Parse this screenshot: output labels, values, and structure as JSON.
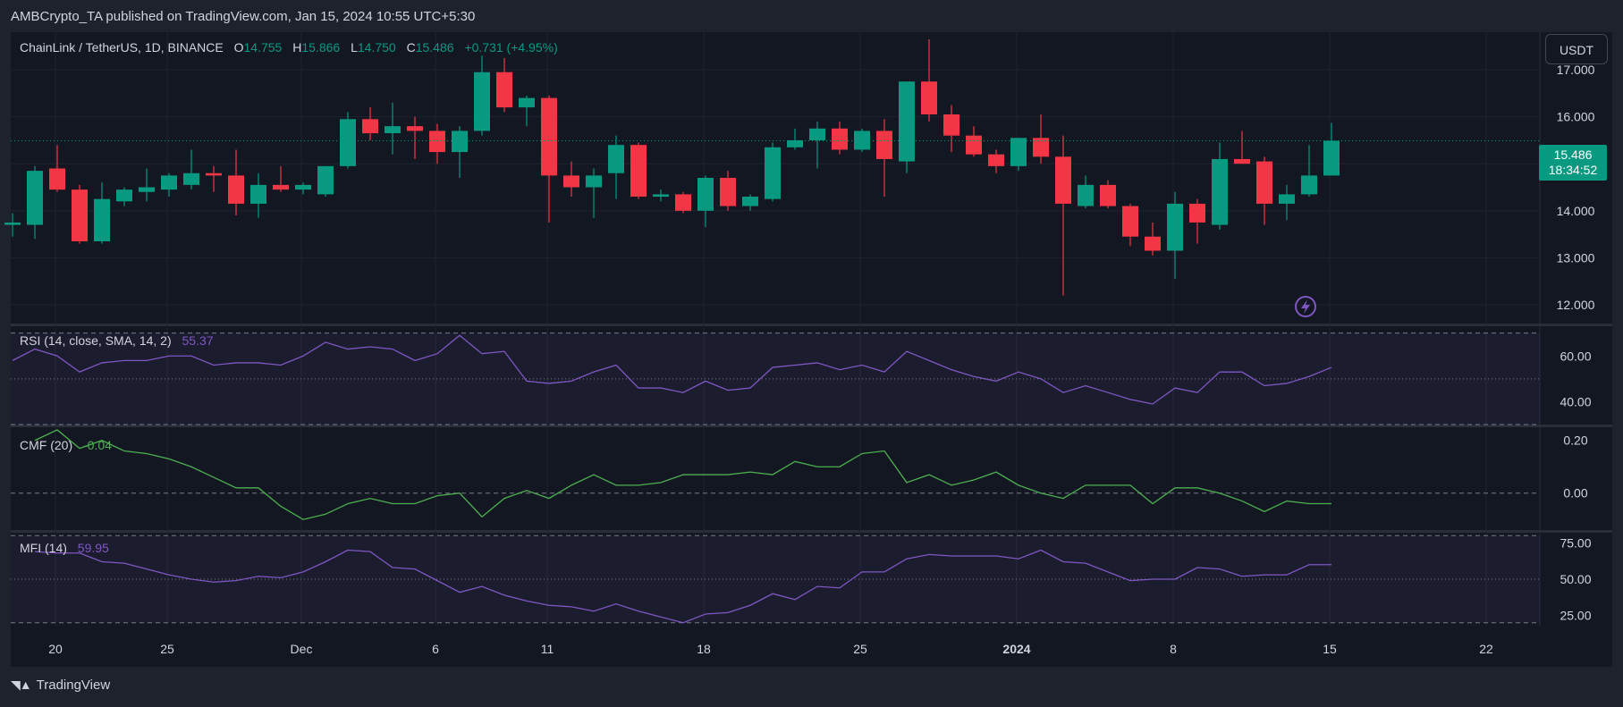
{
  "header": {
    "caption": "AMBCrypto_TA published on TradingView.com, Jan 15, 2024 10:55 UTC+5:30"
  },
  "symbol": {
    "name": "ChainLink / TetherUS, 1D, BINANCE",
    "o_label": "O",
    "o_value": "14.755",
    "h_label": "H",
    "h_value": "15.866",
    "l_label": "L",
    "l_value": "14.750",
    "c_label": "C",
    "c_value": "15.486",
    "change": "+0.731 (+4.95%)"
  },
  "currency_button": "USDT",
  "last_price": {
    "price": "15.486",
    "countdown": "18:34:52"
  },
  "colors": {
    "up": "#089981",
    "down": "#f23645",
    "rsi": "#7e57c2",
    "cmf": "#4caf50",
    "mfi": "#7e57c2",
    "bg": "#131722"
  },
  "footer": {
    "brand": "TradingView",
    "logo_icon": "tradingview-logo-icon"
  },
  "chart_data": [
    {
      "type": "candlestick",
      "pane": "price",
      "x_tick_labels": [
        {
          "label": "20",
          "index": 1
        },
        {
          "label": "25",
          "index": 6
        },
        {
          "label": "Dec",
          "index": 12
        },
        {
          "label": "6",
          "index": 18
        },
        {
          "label": "11",
          "index": 23
        },
        {
          "label": "18",
          "index": 30
        },
        {
          "label": "25",
          "index": 37
        },
        {
          "label": "2024",
          "index": 44
        },
        {
          "label": "8",
          "index": 51
        },
        {
          "label": "15",
          "index": 58
        },
        {
          "label": "22",
          "index": 65
        }
      ],
      "y_ticks": [
        "17.000",
        "16.000",
        "15.000",
        "14.000",
        "13.000",
        "12.000"
      ],
      "ylim": [
        11.6,
        17.8
      ],
      "candles": [
        {
          "o": 13.7,
          "h": 13.95,
          "l": 13.45,
          "c": 13.75
        },
        {
          "o": 13.7,
          "h": 14.95,
          "l": 13.4,
          "c": 14.85
        },
        {
          "o": 14.9,
          "h": 15.4,
          "l": 14.4,
          "c": 14.45
        },
        {
          "o": 14.45,
          "h": 14.55,
          "l": 13.3,
          "c": 13.35
        },
        {
          "o": 13.35,
          "h": 14.6,
          "l": 13.3,
          "c": 14.25
        },
        {
          "o": 14.2,
          "h": 14.5,
          "l": 14.1,
          "c": 14.45
        },
        {
          "o": 14.4,
          "h": 14.9,
          "l": 14.2,
          "c": 14.5
        },
        {
          "o": 14.45,
          "h": 14.8,
          "l": 14.3,
          "c": 14.75
        },
        {
          "o": 14.55,
          "h": 15.3,
          "l": 14.45,
          "c": 14.8
        },
        {
          "o": 14.8,
          "h": 14.95,
          "l": 14.4,
          "c": 14.75
        },
        {
          "o": 14.75,
          "h": 15.3,
          "l": 13.9,
          "c": 14.15
        },
        {
          "o": 14.15,
          "h": 14.8,
          "l": 13.85,
          "c": 14.55
        },
        {
          "o": 14.55,
          "h": 14.95,
          "l": 14.4,
          "c": 14.45
        },
        {
          "o": 14.45,
          "h": 14.6,
          "l": 14.35,
          "c": 14.55
        },
        {
          "o": 14.35,
          "h": 14.95,
          "l": 14.3,
          "c": 14.95
        },
        {
          "o": 14.95,
          "h": 16.1,
          "l": 14.9,
          "c": 15.95
        },
        {
          "o": 15.95,
          "h": 16.2,
          "l": 15.5,
          "c": 15.65
        },
        {
          "o": 15.65,
          "h": 16.3,
          "l": 15.2,
          "c": 15.8
        },
        {
          "o": 15.8,
          "h": 16.0,
          "l": 15.1,
          "c": 15.7
        },
        {
          "o": 15.7,
          "h": 15.85,
          "l": 15.0,
          "c": 15.25
        },
        {
          "o": 15.25,
          "h": 15.8,
          "l": 14.7,
          "c": 15.7
        },
        {
          "o": 15.7,
          "h": 17.3,
          "l": 15.6,
          "c": 16.95
        },
        {
          "o": 16.95,
          "h": 17.25,
          "l": 16.1,
          "c": 16.2
        },
        {
          "o": 16.2,
          "h": 16.45,
          "l": 15.8,
          "c": 16.4
        },
        {
          "o": 16.4,
          "h": 16.45,
          "l": 13.75,
          "c": 14.75
        },
        {
          "o": 14.75,
          "h": 15.05,
          "l": 14.3,
          "c": 14.5
        },
        {
          "o": 14.5,
          "h": 14.9,
          "l": 13.85,
          "c": 14.75
        },
        {
          "o": 14.8,
          "h": 15.6,
          "l": 14.25,
          "c": 15.4
        },
        {
          "o": 15.4,
          "h": 15.45,
          "l": 14.25,
          "c": 14.3
        },
        {
          "o": 14.3,
          "h": 14.45,
          "l": 14.2,
          "c": 14.35
        },
        {
          "o": 14.35,
          "h": 14.4,
          "l": 13.95,
          "c": 14.0
        },
        {
          "o": 14.0,
          "h": 14.75,
          "l": 13.65,
          "c": 14.7
        },
        {
          "o": 14.7,
          "h": 14.85,
          "l": 14.0,
          "c": 14.1
        },
        {
          "o": 14.1,
          "h": 14.35,
          "l": 14.0,
          "c": 14.3
        },
        {
          "o": 14.25,
          "h": 15.45,
          "l": 14.2,
          "c": 15.35
        },
        {
          "o": 15.35,
          "h": 15.75,
          "l": 15.3,
          "c": 15.5
        },
        {
          "o": 15.5,
          "h": 15.9,
          "l": 14.9,
          "c": 15.75
        },
        {
          "o": 15.75,
          "h": 15.9,
          "l": 15.2,
          "c": 15.3
        },
        {
          "o": 15.3,
          "h": 15.75,
          "l": 15.25,
          "c": 15.7
        },
        {
          "o": 15.7,
          "h": 15.95,
          "l": 14.3,
          "c": 15.1
        },
        {
          "o": 15.05,
          "h": 16.75,
          "l": 14.8,
          "c": 16.75
        },
        {
          "o": 16.75,
          "h": 17.65,
          "l": 15.9,
          "c": 16.05
        },
        {
          "o": 16.05,
          "h": 16.25,
          "l": 15.25,
          "c": 15.6
        },
        {
          "o": 15.6,
          "h": 15.8,
          "l": 15.15,
          "c": 15.2
        },
        {
          "o": 15.2,
          "h": 15.3,
          "l": 14.8,
          "c": 14.95
        },
        {
          "o": 14.95,
          "h": 15.55,
          "l": 14.85,
          "c": 15.55
        },
        {
          "o": 15.55,
          "h": 16.05,
          "l": 15.0,
          "c": 15.15
        },
        {
          "o": 15.15,
          "h": 15.6,
          "l": 12.2,
          "c": 14.15
        },
        {
          "o": 14.1,
          "h": 14.75,
          "l": 14.05,
          "c": 14.55
        },
        {
          "o": 14.55,
          "h": 14.65,
          "l": 14.05,
          "c": 14.1
        },
        {
          "o": 14.1,
          "h": 14.15,
          "l": 13.25,
          "c": 13.45
        },
        {
          "o": 13.45,
          "h": 13.75,
          "l": 13.05,
          "c": 13.15
        },
        {
          "o": 13.15,
          "h": 14.4,
          "l": 12.55,
          "c": 14.15
        },
        {
          "o": 14.15,
          "h": 14.25,
          "l": 13.3,
          "c": 13.75
        },
        {
          "o": 13.7,
          "h": 15.45,
          "l": 13.6,
          "c": 15.1
        },
        {
          "o": 15.1,
          "h": 15.7,
          "l": 15.0,
          "c": 15.0
        },
        {
          "o": 15.05,
          "h": 15.15,
          "l": 13.7,
          "c": 14.15
        },
        {
          "o": 14.15,
          "h": 14.55,
          "l": 13.8,
          "c": 14.35
        },
        {
          "o": 14.35,
          "h": 15.4,
          "l": 14.3,
          "c": 14.75
        },
        {
          "o": 14.75,
          "h": 15.87,
          "l": 14.75,
          "c": 15.49
        }
      ]
    },
    {
      "type": "line",
      "pane": "rsi",
      "name": "RSI",
      "label": "RSI (14, close, SMA, 14, 2)",
      "value_label": "55.37",
      "y_ticks": [
        "60.00",
        "40.00"
      ],
      "ylim": [
        30,
        73
      ],
      "bands": [
        70,
        50,
        30
      ],
      "values": [
        58,
        63,
        60,
        53,
        57,
        58,
        58,
        60,
        60,
        56,
        57,
        57,
        56,
        60,
        66,
        63,
        64,
        63,
        58,
        61,
        69,
        61,
        62,
        49,
        48,
        49,
        53,
        56,
        46,
        46,
        44,
        49,
        45,
        46,
        55,
        56,
        57,
        54,
        56,
        53,
        62,
        58,
        54,
        51,
        49,
        53,
        50,
        44,
        47,
        44,
        41,
        39,
        46,
        44,
        53,
        53,
        47,
        48,
        51,
        55
      ]
    },
    {
      "type": "line",
      "pane": "cmf",
      "name": "CMF",
      "label": "CMF (20)",
      "value_label": "-0.04",
      "y_ticks": [
        "0.20",
        "0.00"
      ],
      "ylim": [
        -0.14,
        0.25
      ],
      "zero_line": 0,
      "values": [
        0.2,
        0.24,
        0.17,
        0.2,
        0.16,
        0.15,
        0.13,
        0.1,
        0.06,
        0.02,
        0.02,
        -0.05,
        -0.1,
        -0.08,
        -0.04,
        -0.02,
        -0.04,
        -0.04,
        -0.01,
        0.0,
        -0.09,
        -0.02,
        0.01,
        -0.02,
        0.03,
        0.07,
        0.03,
        0.03,
        0.04,
        0.07,
        0.07,
        0.07,
        0.08,
        0.07,
        0.12,
        0.1,
        0.1,
        0.15,
        0.16,
        0.04,
        0.07,
        0.03,
        0.05,
        0.08,
        0.03,
        0.0,
        -0.02,
        0.03,
        0.03,
        0.03,
        -0.04,
        0.02,
        0.02,
        0.0,
        -0.03,
        -0.07,
        -0.03,
        -0.04,
        -0.04
      ]
    },
    {
      "type": "line",
      "pane": "mfi",
      "name": "MFI",
      "label": "MFI (14)",
      "value_label": "59.95",
      "y_ticks": [
        "75.00",
        "50.00",
        "25.00"
      ],
      "ylim": [
        18,
        82
      ],
      "bands": [
        80,
        50,
        20
      ],
      "values": [
        69,
        68,
        68,
        62,
        61,
        57,
        53,
        50,
        48,
        49,
        52,
        51,
        55,
        62,
        70,
        69,
        58,
        57,
        49,
        41,
        45,
        39,
        35,
        32,
        31,
        28,
        33,
        28,
        24,
        20,
        26,
        27,
        32,
        40,
        36,
        45,
        44,
        55,
        55,
        64,
        67,
        66,
        66,
        66,
        64,
        70,
        62,
        61,
        55,
        49,
        50,
        50,
        58,
        57,
        52,
        53,
        53,
        60,
        60
      ]
    }
  ]
}
